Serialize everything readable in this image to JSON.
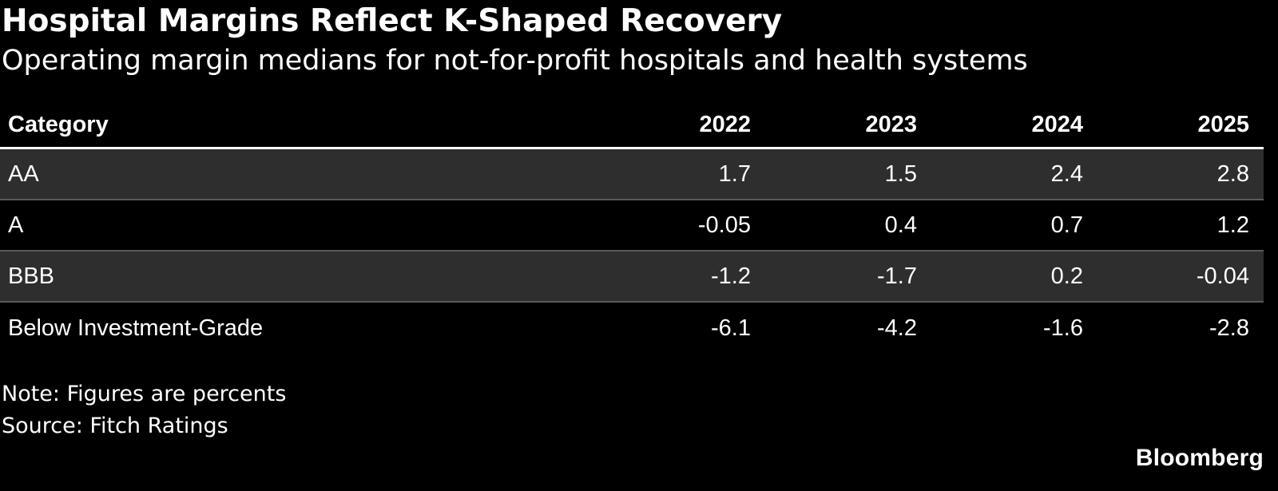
{
  "title": "Hospital Margins Reflect K-Shaped Recovery",
  "subtitle": "Operating margin medians for not-for-profit hospitals and health systems",
  "chart_data": {
    "type": "table",
    "columns": [
      "Category",
      "2022",
      "2023",
      "2024",
      "2025"
    ],
    "rows": [
      {
        "category": "AA",
        "values": [
          "1.7",
          "1.5",
          "2.4",
          "2.8"
        ]
      },
      {
        "category": "A",
        "values": [
          "-0.05",
          "0.4",
          "0.7",
          "1.2"
        ]
      },
      {
        "category": "BBB",
        "values": [
          "-1.2",
          "-1.7",
          "0.2",
          "-0.04"
        ]
      },
      {
        "category": "Below Investment-Grade",
        "values": [
          "-6.1",
          "-4.2",
          "-1.6",
          "-2.8"
        ]
      }
    ]
  },
  "note": "Note: Figures are percents",
  "source": "Source: Fitch Ratings",
  "brand": "Bloomberg",
  "colors": {
    "background": "#000000",
    "text": "#ffffff",
    "band": "#2e2e2e",
    "divider": "#595959"
  }
}
